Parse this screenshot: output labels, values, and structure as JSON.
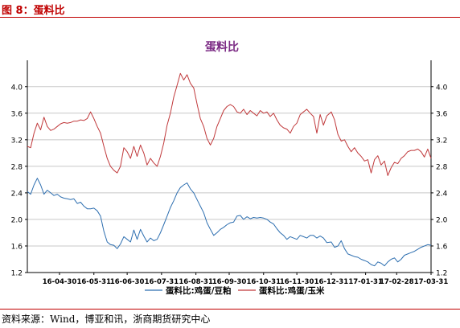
{
  "figure": {
    "label": "图 8：蛋料比",
    "source": "资料来源：Wind，博亚和讯，浙商期货研究中心"
  },
  "colors": {
    "header_red": "#c00000",
    "title_purple": "#7b2a84",
    "series_egg_soymeal": "#2e6fb0",
    "series_egg_corn": "#c0393b",
    "grid": "#c8c8c8",
    "axis": "#000000"
  },
  "chart_data": {
    "type": "line",
    "title": "蛋料比",
    "xlabel": "",
    "ylabel": "",
    "ylim": [
      1.2,
      4.3
    ],
    "yticks": [
      "1.2",
      "1.6",
      "2.0",
      "2.4",
      "2.8",
      "3.2",
      "3.6",
      "4.0"
    ],
    "xticks": [
      "16-04-30",
      "16-05-31",
      "16-06-30",
      "16-07-31",
      "16-08-31",
      "16-09-30",
      "16-10-31",
      "16-11-30",
      "16-12-31",
      "17-01-31",
      "17-02-28",
      "17-03-31"
    ],
    "grid": true,
    "legend": "bottom",
    "secondary_axis": "right (same scale)",
    "x_start": "2016-04-01",
    "x_end": "2017-03-31",
    "series": [
      {
        "name": "蛋料比:鸡蛋/豆粕",
        "color": "#2e6fb0",
        "values": [
          [
            "2016-04-01",
            2.42
          ],
          [
            "2016-04-04",
            2.38
          ],
          [
            "2016-04-07",
            2.52
          ],
          [
            "2016-04-10",
            2.62
          ],
          [
            "2016-04-13",
            2.52
          ],
          [
            "2016-04-16",
            2.38
          ],
          [
            "2016-04-19",
            2.44
          ],
          [
            "2016-04-22",
            2.4
          ],
          [
            "2016-04-25",
            2.36
          ],
          [
            "2016-04-28",
            2.38
          ],
          [
            "2016-05-01",
            2.34
          ],
          [
            "2016-05-04",
            2.32
          ],
          [
            "2016-05-07",
            2.31
          ],
          [
            "2016-05-10",
            2.3
          ],
          [
            "2016-05-13",
            2.31
          ],
          [
            "2016-05-16",
            2.24
          ],
          [
            "2016-05-19",
            2.26
          ],
          [
            "2016-05-22",
            2.2
          ],
          [
            "2016-05-25",
            2.16
          ],
          [
            "2016-05-28",
            2.16
          ],
          [
            "2016-05-31",
            2.17
          ],
          [
            "2016-06-03",
            2.13
          ],
          [
            "2016-06-06",
            2.05
          ],
          [
            "2016-06-09",
            1.82
          ],
          [
            "2016-06-12",
            1.66
          ],
          [
            "2016-06-15",
            1.62
          ],
          [
            "2016-06-18",
            1.61
          ],
          [
            "2016-06-21",
            1.56
          ],
          [
            "2016-06-24",
            1.63
          ],
          [
            "2016-06-27",
            1.74
          ],
          [
            "2016-06-30",
            1.7
          ],
          [
            "2016-07-03",
            1.66
          ],
          [
            "2016-07-06",
            1.84
          ],
          [
            "2016-07-09",
            1.7
          ],
          [
            "2016-07-12",
            1.85
          ],
          [
            "2016-07-15",
            1.75
          ],
          [
            "2016-07-18",
            1.66
          ],
          [
            "2016-07-21",
            1.72
          ],
          [
            "2016-07-24",
            1.68
          ],
          [
            "2016-07-27",
            1.7
          ],
          [
            "2016-07-30",
            1.8
          ],
          [
            "2016-08-02",
            1.92
          ],
          [
            "2016-08-05",
            2.05
          ],
          [
            "2016-08-08",
            2.18
          ],
          [
            "2016-08-11",
            2.28
          ],
          [
            "2016-08-14",
            2.4
          ],
          [
            "2016-08-17",
            2.48
          ],
          [
            "2016-08-20",
            2.52
          ],
          [
            "2016-08-23",
            2.55
          ],
          [
            "2016-08-26",
            2.46
          ],
          [
            "2016-08-29",
            2.4
          ],
          [
            "2016-09-01",
            2.3
          ],
          [
            "2016-09-04",
            2.2
          ],
          [
            "2016-09-07",
            2.1
          ],
          [
            "2016-09-10",
            1.95
          ],
          [
            "2016-09-13",
            1.85
          ],
          [
            "2016-09-16",
            1.76
          ],
          [
            "2016-09-19",
            1.8
          ],
          [
            "2016-09-22",
            1.85
          ],
          [
            "2016-09-25",
            1.88
          ],
          [
            "2016-09-28",
            1.92
          ],
          [
            "2016-10-01",
            1.95
          ],
          [
            "2016-10-04",
            1.96
          ],
          [
            "2016-10-07",
            2.05
          ],
          [
            "2016-10-10",
            2.06
          ],
          [
            "2016-10-13",
            2.0
          ],
          [
            "2016-10-16",
            2.04
          ],
          [
            "2016-10-19",
            2.01
          ],
          [
            "2016-10-22",
            2.03
          ],
          [
            "2016-10-25",
            2.02
          ],
          [
            "2016-10-28",
            2.03
          ],
          [
            "2016-10-31",
            2.02
          ],
          [
            "2016-11-03",
            2.0
          ],
          [
            "2016-11-06",
            1.96
          ],
          [
            "2016-11-09",
            1.93
          ],
          [
            "2016-11-12",
            1.86
          ],
          [
            "2016-11-15",
            1.8
          ],
          [
            "2016-11-18",
            1.76
          ],
          [
            "2016-11-21",
            1.7
          ],
          [
            "2016-11-24",
            1.74
          ],
          [
            "2016-11-27",
            1.72
          ],
          [
            "2016-11-30",
            1.7
          ],
          [
            "2016-12-03",
            1.76
          ],
          [
            "2016-12-06",
            1.74
          ],
          [
            "2016-12-09",
            1.72
          ],
          [
            "2016-12-12",
            1.76
          ],
          [
            "2016-12-15",
            1.76
          ],
          [
            "2016-12-18",
            1.72
          ],
          [
            "2016-12-21",
            1.75
          ],
          [
            "2016-12-24",
            1.72
          ],
          [
            "2016-12-27",
            1.65
          ],
          [
            "2016-12-31",
            1.66
          ],
          [
            "2017-01-03",
            1.58
          ],
          [
            "2017-01-06",
            1.6
          ],
          [
            "2017-01-09",
            1.68
          ],
          [
            "2017-01-12",
            1.56
          ],
          [
            "2017-01-15",
            1.48
          ],
          [
            "2017-01-18",
            1.46
          ],
          [
            "2017-01-21",
            1.44
          ],
          [
            "2017-01-24",
            1.43
          ],
          [
            "2017-01-27",
            1.4
          ],
          [
            "2017-01-30",
            1.38
          ],
          [
            "2017-02-02",
            1.36
          ],
          [
            "2017-02-05",
            1.32
          ],
          [
            "2017-02-08",
            1.3
          ],
          [
            "2017-02-11",
            1.36
          ],
          [
            "2017-02-14",
            1.34
          ],
          [
            "2017-02-17",
            1.3
          ],
          [
            "2017-02-20",
            1.36
          ],
          [
            "2017-02-23",
            1.4
          ],
          [
            "2017-02-26",
            1.42
          ],
          [
            "2017-03-01",
            1.36
          ],
          [
            "2017-03-04",
            1.4
          ],
          [
            "2017-03-07",
            1.46
          ],
          [
            "2017-03-10",
            1.48
          ],
          [
            "2017-03-13",
            1.5
          ],
          [
            "2017-03-16",
            1.52
          ],
          [
            "2017-03-19",
            1.55
          ],
          [
            "2017-03-22",
            1.58
          ],
          [
            "2017-03-25",
            1.6
          ],
          [
            "2017-03-28",
            1.62
          ],
          [
            "2017-03-31",
            1.61
          ]
        ]
      },
      {
        "name": "蛋料比:鸡蛋/玉米",
        "color": "#c0393b",
        "values": [
          [
            "2016-04-01",
            3.1
          ],
          [
            "2016-04-04",
            3.08
          ],
          [
            "2016-04-07",
            3.3
          ],
          [
            "2016-04-10",
            3.45
          ],
          [
            "2016-04-13",
            3.35
          ],
          [
            "2016-04-16",
            3.54
          ],
          [
            "2016-04-19",
            3.4
          ],
          [
            "2016-04-22",
            3.34
          ],
          [
            "2016-04-25",
            3.36
          ],
          [
            "2016-04-28",
            3.4
          ],
          [
            "2016-05-01",
            3.44
          ],
          [
            "2016-05-04",
            3.46
          ],
          [
            "2016-05-07",
            3.45
          ],
          [
            "2016-05-10",
            3.46
          ],
          [
            "2016-05-13",
            3.48
          ],
          [
            "2016-05-16",
            3.48
          ],
          [
            "2016-05-19",
            3.5
          ],
          [
            "2016-05-22",
            3.49
          ],
          [
            "2016-05-25",
            3.52
          ],
          [
            "2016-05-28",
            3.62
          ],
          [
            "2016-05-31",
            3.52
          ],
          [
            "2016-06-03",
            3.4
          ],
          [
            "2016-06-06",
            3.3
          ],
          [
            "2016-06-09",
            3.1
          ],
          [
            "2016-06-12",
            2.92
          ],
          [
            "2016-06-15",
            2.8
          ],
          [
            "2016-06-18",
            2.74
          ],
          [
            "2016-06-21",
            2.7
          ],
          [
            "2016-06-24",
            2.8
          ],
          [
            "2016-06-27",
            3.08
          ],
          [
            "2016-06-30",
            3.02
          ],
          [
            "2016-07-03",
            2.92
          ],
          [
            "2016-07-06",
            3.1
          ],
          [
            "2016-07-09",
            2.95
          ],
          [
            "2016-07-12",
            3.12
          ],
          [
            "2016-07-15",
            3.0
          ],
          [
            "2016-07-18",
            2.82
          ],
          [
            "2016-07-21",
            2.92
          ],
          [
            "2016-07-24",
            2.85
          ],
          [
            "2016-07-27",
            2.8
          ],
          [
            "2016-07-30",
            2.95
          ],
          [
            "2016-08-02",
            3.15
          ],
          [
            "2016-08-05",
            3.42
          ],
          [
            "2016-08-08",
            3.6
          ],
          [
            "2016-08-11",
            3.84
          ],
          [
            "2016-08-14",
            4.02
          ],
          [
            "2016-08-17",
            4.2
          ],
          [
            "2016-08-20",
            4.1
          ],
          [
            "2016-08-23",
            4.18
          ],
          [
            "2016-08-26",
            4.05
          ],
          [
            "2016-08-29",
            3.98
          ],
          [
            "2016-09-01",
            3.74
          ],
          [
            "2016-09-04",
            3.52
          ],
          [
            "2016-09-07",
            3.4
          ],
          [
            "2016-09-10",
            3.22
          ],
          [
            "2016-09-13",
            3.12
          ],
          [
            "2016-09-16",
            3.22
          ],
          [
            "2016-09-19",
            3.4
          ],
          [
            "2016-09-22",
            3.52
          ],
          [
            "2016-09-25",
            3.64
          ],
          [
            "2016-09-28",
            3.7
          ],
          [
            "2016-10-01",
            3.73
          ],
          [
            "2016-10-04",
            3.7
          ],
          [
            "2016-10-07",
            3.62
          ],
          [
            "2016-10-10",
            3.6
          ],
          [
            "2016-10-13",
            3.66
          ],
          [
            "2016-10-16",
            3.58
          ],
          [
            "2016-10-19",
            3.64
          ],
          [
            "2016-10-22",
            3.6
          ],
          [
            "2016-10-25",
            3.56
          ],
          [
            "2016-10-28",
            3.64
          ],
          [
            "2016-10-31",
            3.6
          ],
          [
            "2016-11-03",
            3.62
          ],
          [
            "2016-11-06",
            3.55
          ],
          [
            "2016-11-09",
            3.6
          ],
          [
            "2016-11-12",
            3.5
          ],
          [
            "2016-11-15",
            3.42
          ],
          [
            "2016-11-18",
            3.38
          ],
          [
            "2016-11-21",
            3.36
          ],
          [
            "2016-11-24",
            3.3
          ],
          [
            "2016-11-27",
            3.4
          ],
          [
            "2016-11-30",
            3.45
          ],
          [
            "2016-12-03",
            3.58
          ],
          [
            "2016-12-06",
            3.62
          ],
          [
            "2016-12-09",
            3.66
          ],
          [
            "2016-12-12",
            3.6
          ],
          [
            "2016-12-15",
            3.55
          ],
          [
            "2016-12-18",
            3.3
          ],
          [
            "2016-12-21",
            3.58
          ],
          [
            "2016-12-24",
            3.42
          ],
          [
            "2016-12-27",
            3.56
          ],
          [
            "2016-12-31",
            3.62
          ],
          [
            "2017-01-03",
            3.5
          ],
          [
            "2017-01-06",
            3.28
          ],
          [
            "2017-01-09",
            3.18
          ],
          [
            "2017-01-12",
            3.2
          ],
          [
            "2017-01-15",
            3.1
          ],
          [
            "2017-01-18",
            3.02
          ],
          [
            "2017-01-21",
            3.08
          ],
          [
            "2017-01-24",
            3.0
          ],
          [
            "2017-01-27",
            2.95
          ],
          [
            "2017-01-30",
            2.88
          ],
          [
            "2017-02-02",
            2.9
          ],
          [
            "2017-02-05",
            2.7
          ],
          [
            "2017-02-08",
            2.9
          ],
          [
            "2017-02-11",
            2.96
          ],
          [
            "2017-02-14",
            2.82
          ],
          [
            "2017-02-17",
            2.88
          ],
          [
            "2017-02-20",
            2.66
          ],
          [
            "2017-02-23",
            2.78
          ],
          [
            "2017-02-26",
            2.86
          ],
          [
            "2017-03-01",
            2.84
          ],
          [
            "2017-03-04",
            2.92
          ],
          [
            "2017-03-07",
            2.96
          ],
          [
            "2017-03-10",
            3.02
          ],
          [
            "2017-03-13",
            3.04
          ],
          [
            "2017-03-16",
            3.04
          ],
          [
            "2017-03-19",
            3.06
          ],
          [
            "2017-03-22",
            3.02
          ],
          [
            "2017-03-25",
            2.94
          ],
          [
            "2017-03-28",
            3.06
          ],
          [
            "2017-03-31",
            2.92
          ]
        ]
      }
    ]
  }
}
